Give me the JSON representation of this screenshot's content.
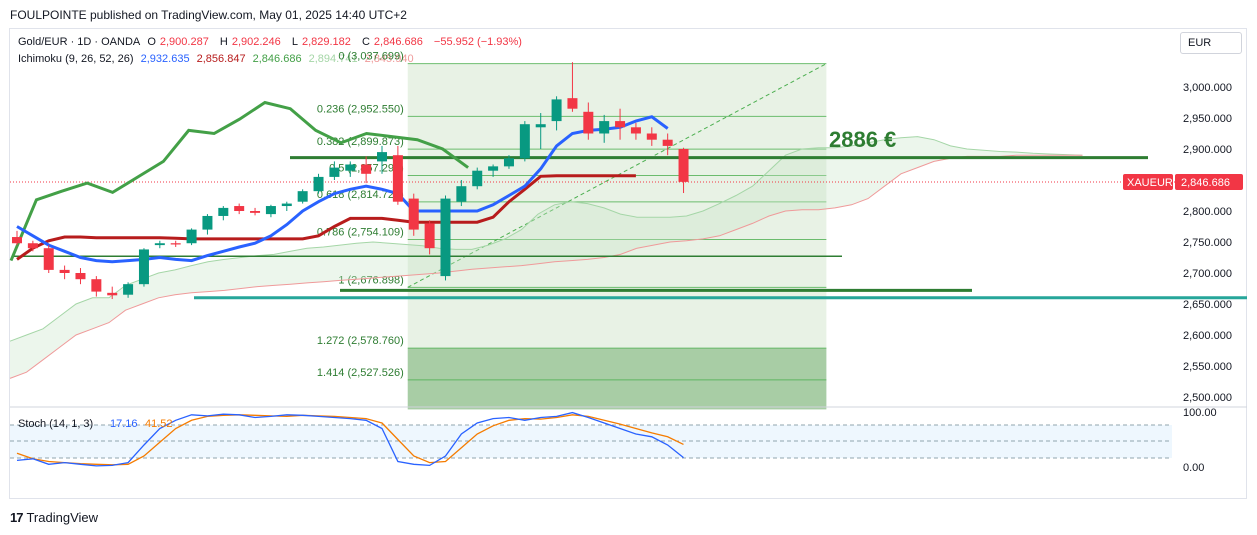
{
  "header": {
    "text": "FOULPOINTE published on TradingView.com, May 01, 2025 14:40 UTC+2"
  },
  "legend": {
    "symbol": "Gold/EUR · 1D · OANDA",
    "o_label": "O",
    "o": "2,900.287",
    "h_label": "H",
    "h": "2,902.246",
    "l_label": "L",
    "l": "2,829.182",
    "c_label": "C",
    "c": "2,846.686",
    "chg": "−55.952 (−1.93%)",
    "ichimoku_label": "Ichimoku (9, 26, 52, 26)",
    "ich1": "2,932.635",
    "ich2": "2,856.847",
    "ich3": "2,846.686",
    "ich4": "2,894.741",
    "ich5": "2,845.940"
  },
  "currency": "EUR",
  "colors": {
    "up": "#089981",
    "down": "#f23645",
    "tenkan": "#2962ff",
    "kijun": "#b71c1c",
    "chikou": "#43a047",
    "fib": "#2e7d32",
    "teal": "#26a69a"
  },
  "annotation": "2886 €",
  "price_tag": {
    "symbol": "XAUEUR",
    "value": "2,846.686"
  },
  "stoch": {
    "label": "Stoch (14, 1, 3)",
    "k": "17.16",
    "d": "41.52",
    "ticks": [
      "100.00",
      "0.00"
    ]
  },
  "footer": {
    "brand": "TradingView"
  },
  "chart_data": {
    "type": "candlestick",
    "title": "Gold/EUR · 1D · OANDA",
    "ylim": [
      2480,
      3050
    ],
    "y_ticks": [
      3000,
      2950,
      2900,
      2850,
      2800,
      2750,
      2700,
      2650,
      2600,
      2550,
      2500
    ],
    "y_tick_labels": [
      "3,000.000",
      "2,950.000",
      "2,900.000",
      "2,850.000",
      "2,800.000",
      "2,750.000",
      "2,700.000",
      "2,650.000",
      "2,600.000",
      "2,550.000",
      "2,500.000"
    ],
    "candles": [
      [
        2758,
        2768,
        2745,
        2748
      ],
      [
        2748,
        2752,
        2735,
        2740
      ],
      [
        2740,
        2745,
        2700,
        2705
      ],
      [
        2705,
        2712,
        2690,
        2700
      ],
      [
        2700,
        2708,
        2682,
        2690
      ],
      [
        2690,
        2695,
        2662,
        2670
      ],
      [
        2668,
        2678,
        2658,
        2664
      ],
      [
        2665,
        2685,
        2660,
        2682
      ],
      [
        2682,
        2740,
        2678,
        2738
      ],
      [
        2745,
        2752,
        2740,
        2748
      ],
      [
        2748,
        2752,
        2742,
        2746
      ],
      [
        2748,
        2772,
        2745,
        2770
      ],
      [
        2770,
        2795,
        2762,
        2792
      ],
      [
        2792,
        2808,
        2785,
        2805
      ],
      [
        2808,
        2812,
        2795,
        2800
      ],
      [
        2800,
        2805,
        2793,
        2797
      ],
      [
        2795,
        2810,
        2790,
        2808
      ],
      [
        2808,
        2815,
        2800,
        2812
      ],
      [
        2815,
        2835,
        2812,
        2832
      ],
      [
        2832,
        2860,
        2828,
        2855
      ],
      [
        2855,
        2880,
        2850,
        2870
      ],
      [
        2865,
        2880,
        2855,
        2875
      ],
      [
        2875,
        2888,
        2845,
        2860
      ],
      [
        2880,
        2905,
        2860,
        2895
      ],
      [
        2890,
        2905,
        2810,
        2815
      ],
      [
        2820,
        2828,
        2760,
        2770
      ],
      [
        2780,
        2785,
        2730,
        2740
      ],
      [
        2695,
        2825,
        2688,
        2820
      ],
      [
        2815,
        2850,
        2808,
        2840
      ],
      [
        2840,
        2870,
        2835,
        2865
      ],
      [
        2865,
        2875,
        2855,
        2872
      ],
      [
        2872,
        2890,
        2868,
        2885
      ],
      [
        2885,
        2945,
        2880,
        2940
      ],
      [
        2935,
        2958,
        2900,
        2940
      ],
      [
        2945,
        2985,
        2930,
        2980
      ],
      [
        2982,
        3040,
        2960,
        2965
      ],
      [
        2960,
        2975,
        2915,
        2925
      ],
      [
        2925,
        2955,
        2910,
        2945
      ],
      [
        2945,
        2965,
        2915,
        2935
      ],
      [
        2935,
        2942,
        2915,
        2925
      ],
      [
        2925,
        2935,
        2905,
        2915
      ],
      [
        2915,
        2925,
        2890,
        2905
      ],
      [
        2900,
        2902,
        2829,
        2847
      ]
    ],
    "fib_levels": [
      {
        "label": "0 (3,037.699)",
        "value": 3037.699
      },
      {
        "label": "0.236 (2,952.550)",
        "value": 2952.55
      },
      {
        "label": "0.382 (2,899.873)",
        "value": 2899.873
      },
      {
        "label": "0.5 (2,857.298)",
        "value": 2857.298
      },
      {
        "label": "0.618 (2,814.724)",
        "value": 2814.724
      },
      {
        "label": "0.786 (2,754.109)",
        "value": 2754.109
      },
      {
        "label": "1 (2,676.898)",
        "value": 2676.898
      },
      {
        "label": "1.272 (2,578.760)",
        "value": 2578.76
      },
      {
        "label": "1.414 (2,527.526)",
        "value": 2527.526
      }
    ],
    "tenkan": [
      2775,
      2760,
      2745,
      2735,
      2725,
      2720,
      2718,
      2720,
      2722,
      2725,
      2722,
      2720,
      2728,
      2735,
      2742,
      2748,
      2760,
      2778,
      2800,
      2815,
      2828,
      2835,
      2840,
      2835,
      2828,
      2800,
      2800,
      2800,
      2800,
      2800,
      2810,
      2825,
      2840,
      2868,
      2905,
      2925,
      2930,
      2932,
      2935,
      2945,
      2952,
      2933
    ],
    "kijun": [
      2722,
      2740,
      2752,
      2758,
      2758,
      2757,
      2757,
      2757,
      2757,
      2757,
      2756,
      2755,
      2755,
      2755,
      2755,
      2755,
      2755,
      2755,
      2755,
      2760,
      2775,
      2788,
      2788,
      2788,
      2785,
      2782,
      2782,
      2782,
      2782,
      2782,
      2790,
      2815,
      2835,
      2856,
      2857,
      2857,
      2857,
      2857,
      2857,
      2857
    ],
    "chikou": [
      2720,
      2818,
      2832,
      2845,
      2830,
      2855,
      2880,
      2930,
      2925,
      2948,
      2975,
      2965,
      2930,
      2910,
      2925,
      2920,
      2915,
      2900,
      2870
    ]
  }
}
